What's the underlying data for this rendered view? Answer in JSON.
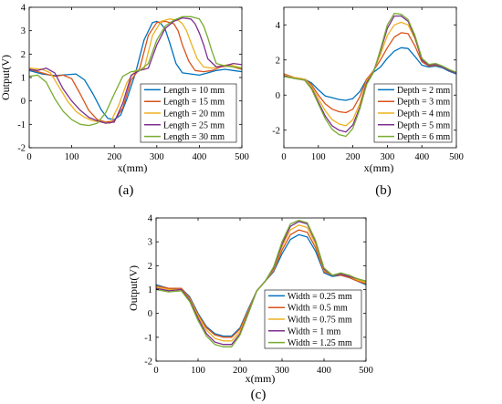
{
  "chart_data": [
    {
      "type": "line",
      "panel_label": "(a)",
      "xlabel": "x(mm)",
      "ylabel": "Output(V)",
      "xlim": [
        0,
        500
      ],
      "ylim": [
        -2,
        4
      ],
      "xticks": [
        0,
        100,
        200,
        300,
        400,
        500
      ],
      "yticks": [
        -2,
        -1,
        0,
        1,
        2,
        3,
        4
      ],
      "grid": false,
      "legend_position": "right-middle",
      "series": [
        {
          "name": "Length = 10 mm",
          "color": "#0072BD",
          "x": [
            0,
            30,
            60,
            90,
            110,
            130,
            150,
            170,
            185,
            200,
            215,
            230,
            250,
            270,
            290,
            300,
            310,
            320,
            330,
            345,
            360,
            380,
            400,
            420,
            440,
            460,
            480,
            500
          ],
          "y": [
            1.3,
            1.15,
            1.08,
            1.12,
            1.15,
            0.9,
            0.3,
            -0.4,
            -0.75,
            -0.8,
            -0.6,
            0.1,
            1.2,
            2.6,
            3.35,
            3.4,
            3.3,
            3.05,
            2.5,
            1.6,
            1.2,
            1.15,
            1.1,
            1.2,
            1.3,
            1.35,
            1.3,
            1.25
          ]
        },
        {
          "name": "Length = 15 mm",
          "color": "#D95319",
          "x": [
            0,
            30,
            60,
            80,
            100,
            120,
            140,
            160,
            180,
            200,
            220,
            240,
            260,
            280,
            300,
            320,
            340,
            350,
            360,
            375,
            390,
            410,
            430,
            450,
            470,
            490,
            500
          ],
          "y": [
            1.35,
            1.2,
            1.05,
            1.1,
            0.95,
            0.3,
            -0.4,
            -0.8,
            -0.9,
            -0.85,
            -0.3,
            0.9,
            1.4,
            2.8,
            3.35,
            3.4,
            3.3,
            3.0,
            2.4,
            1.7,
            1.3,
            1.25,
            1.3,
            1.45,
            1.5,
            1.4,
            1.35
          ]
        },
        {
          "name": "Length = 20 mm",
          "color": "#EDB120",
          "x": [
            0,
            30,
            50,
            70,
            90,
            110,
            130,
            150,
            170,
            190,
            210,
            230,
            250,
            270,
            290,
            310,
            330,
            350,
            360,
            370,
            380,
            395,
            410,
            430,
            450,
            470,
            490,
            500
          ],
          "y": [
            1.4,
            1.35,
            1.2,
            0.6,
            0.0,
            -0.45,
            -0.7,
            -0.85,
            -0.9,
            -0.95,
            -0.2,
            0.8,
            1.3,
            1.35,
            2.8,
            3.4,
            3.5,
            3.45,
            3.3,
            3.0,
            2.5,
            1.8,
            1.45,
            1.4,
            1.5,
            1.55,
            1.45,
            1.4
          ]
        },
        {
          "name": "Length = 25 mm",
          "color": "#7E2F8E",
          "x": [
            0,
            20,
            40,
            60,
            80,
            100,
            120,
            140,
            160,
            180,
            200,
            220,
            240,
            260,
            280,
            300,
            320,
            340,
            360,
            380,
            390,
            400,
            410,
            420,
            440,
            460,
            480,
            500
          ],
          "y": [
            1.35,
            1.3,
            1.4,
            1.2,
            0.5,
            0.0,
            -0.4,
            -0.7,
            -0.85,
            -0.95,
            -0.9,
            -0.1,
            1.1,
            1.3,
            1.4,
            2.4,
            3.1,
            3.4,
            3.55,
            3.5,
            3.3,
            2.9,
            2.4,
            1.8,
            1.45,
            1.5,
            1.6,
            1.55
          ]
        },
        {
          "name": "Length = 30 mm",
          "color": "#77AC30",
          "x": [
            0,
            20,
            40,
            60,
            80,
            100,
            120,
            140,
            160,
            180,
            200,
            220,
            240,
            260,
            280,
            300,
            320,
            340,
            360,
            380,
            400,
            410,
            420,
            430,
            440,
            460,
            480,
            500
          ],
          "y": [
            1.05,
            1.1,
            0.8,
            0.1,
            -0.45,
            -0.8,
            -1.0,
            -1.05,
            -0.95,
            -0.5,
            0.3,
            1.05,
            1.25,
            1.3,
            1.6,
            2.6,
            3.2,
            3.45,
            3.6,
            3.6,
            3.5,
            3.2,
            2.7,
            2.1,
            1.6,
            1.5,
            1.45,
            1.4
          ]
        }
      ]
    },
    {
      "type": "line",
      "panel_label": "(b)",
      "xlabel": "x(mm)",
      "ylabel": "",
      "xlim": [
        0,
        500
      ],
      "ylim": [
        -3,
        5
      ],
      "xticks": [
        0,
        100,
        200,
        300,
        400,
        500
      ],
      "yticks": [
        -2,
        0,
        2,
        4
      ],
      "grid": false,
      "legend_position": "right-middle",
      "series": [
        {
          "name": "Depth = 2 mm",
          "color": "#0072BD",
          "x": [
            0,
            30,
            60,
            80,
            100,
            120,
            140,
            160,
            180,
            200,
            220,
            240,
            260,
            280,
            300,
            320,
            340,
            360,
            380,
            400,
            420,
            440,
            460,
            480,
            500
          ],
          "y": [
            1.2,
            1.0,
            0.9,
            0.7,
            0.3,
            -0.05,
            -0.15,
            -0.25,
            -0.3,
            -0.2,
            0.2,
            0.9,
            1.3,
            1.6,
            2.1,
            2.5,
            2.7,
            2.65,
            2.2,
            1.7,
            1.6,
            1.65,
            1.55,
            1.35,
            1.2
          ]
        },
        {
          "name": "Depth = 3 mm",
          "color": "#D95319",
          "x": [
            0,
            30,
            60,
            80,
            100,
            120,
            140,
            160,
            180,
            200,
            220,
            240,
            260,
            280,
            300,
            320,
            340,
            360,
            380,
            400,
            420,
            440,
            460,
            480,
            500
          ],
          "y": [
            1.2,
            1.0,
            0.9,
            0.6,
            0.0,
            -0.5,
            -0.8,
            -0.95,
            -1.0,
            -0.8,
            -0.1,
            0.9,
            1.4,
            2.0,
            2.7,
            3.3,
            3.55,
            3.5,
            2.8,
            1.9,
            1.65,
            1.7,
            1.6,
            1.4,
            1.25
          ]
        },
        {
          "name": "Depth = 4 mm",
          "color": "#EDB120",
          "x": [
            0,
            30,
            60,
            80,
            100,
            120,
            140,
            160,
            180,
            200,
            220,
            240,
            260,
            280,
            300,
            320,
            340,
            360,
            380,
            400,
            420,
            440,
            460,
            480,
            500
          ],
          "y": [
            1.15,
            1.0,
            0.9,
            0.5,
            -0.2,
            -0.9,
            -1.4,
            -1.65,
            -1.75,
            -1.4,
            -0.5,
            0.8,
            1.4,
            2.3,
            3.4,
            4.0,
            4.15,
            4.0,
            3.2,
            2.0,
            1.7,
            1.75,
            1.6,
            1.4,
            1.25
          ]
        },
        {
          "name": "Depth = 5 mm",
          "color": "#7E2F8E",
          "x": [
            0,
            30,
            60,
            80,
            100,
            120,
            140,
            160,
            180,
            200,
            220,
            240,
            260,
            280,
            300,
            320,
            340,
            360,
            380,
            400,
            420,
            440,
            460,
            480,
            500
          ],
          "y": [
            1.1,
            0.95,
            0.85,
            0.4,
            -0.4,
            -1.2,
            -1.75,
            -2.0,
            -2.1,
            -1.7,
            -0.7,
            0.7,
            1.35,
            2.5,
            3.8,
            4.5,
            4.5,
            4.2,
            3.3,
            2.0,
            1.7,
            1.75,
            1.6,
            1.4,
            1.25
          ]
        },
        {
          "name": "Depth = 6 mm",
          "color": "#77AC30",
          "x": [
            0,
            30,
            60,
            80,
            100,
            120,
            140,
            160,
            180,
            200,
            220,
            240,
            260,
            280,
            300,
            320,
            340,
            360,
            380,
            400,
            420,
            440,
            460,
            480,
            500
          ],
          "y": [
            1.05,
            0.95,
            0.85,
            0.35,
            -0.5,
            -1.35,
            -1.95,
            -2.25,
            -2.35,
            -1.9,
            -0.8,
            0.6,
            1.3,
            2.6,
            4.0,
            4.65,
            4.6,
            4.3,
            3.4,
            2.1,
            1.75,
            1.8,
            1.65,
            1.45,
            1.3
          ]
        }
      ]
    },
    {
      "type": "line",
      "panel_label": "(c)",
      "xlabel": "x(mm)",
      "ylabel": "Output(V)",
      "xlim": [
        0,
        500
      ],
      "ylim": [
        -2,
        4
      ],
      "xticks": [
        0,
        100,
        200,
        300,
        400,
        500
      ],
      "yticks": [
        -2,
        -1,
        0,
        1,
        2,
        3,
        4
      ],
      "grid": false,
      "legend_position": "right-bottom",
      "series": [
        {
          "name": "Width = 0.25 mm",
          "color": "#0072BD",
          "x": [
            0,
            30,
            60,
            80,
            100,
            120,
            140,
            160,
            180,
            200,
            220,
            240,
            260,
            280,
            300,
            320,
            340,
            360,
            380,
            400,
            420,
            440,
            460,
            480,
            500
          ],
          "y": [
            1.2,
            1.05,
            1.05,
            0.7,
            0.0,
            -0.55,
            -0.85,
            -0.95,
            -0.95,
            -0.6,
            0.2,
            0.95,
            1.35,
            1.75,
            2.5,
            3.1,
            3.3,
            3.2,
            2.6,
            1.7,
            1.55,
            1.6,
            1.5,
            1.35,
            1.2
          ]
        },
        {
          "name": "Width = 0.5 mm",
          "color": "#D95319",
          "x": [
            0,
            30,
            60,
            80,
            100,
            120,
            140,
            160,
            180,
            200,
            220,
            240,
            260,
            280,
            300,
            320,
            340,
            360,
            380,
            400,
            420,
            440,
            460,
            480,
            500
          ],
          "y": [
            1.15,
            1.05,
            1.05,
            0.65,
            -0.05,
            -0.6,
            -0.9,
            -1.0,
            -1.0,
            -0.65,
            0.15,
            0.95,
            1.35,
            1.8,
            2.65,
            3.3,
            3.5,
            3.4,
            2.75,
            1.75,
            1.6,
            1.6,
            1.5,
            1.35,
            1.25
          ]
        },
        {
          "name": "Width = 0.75 mm",
          "color": "#EDB120",
          "x": [
            0,
            30,
            60,
            80,
            100,
            120,
            140,
            160,
            180,
            200,
            220,
            240,
            260,
            280,
            300,
            320,
            340,
            360,
            380,
            400,
            420,
            440,
            460,
            480,
            500
          ],
          "y": [
            1.1,
            1.0,
            1.0,
            0.6,
            -0.1,
            -0.7,
            -1.05,
            -1.15,
            -1.15,
            -0.75,
            0.1,
            0.95,
            1.35,
            1.85,
            2.8,
            3.5,
            3.7,
            3.6,
            2.9,
            1.8,
            1.6,
            1.65,
            1.55,
            1.4,
            1.3
          ]
        },
        {
          "name": "Width = 1 mm",
          "color": "#7E2F8E",
          "x": [
            0,
            30,
            60,
            80,
            100,
            120,
            140,
            160,
            180,
            200,
            220,
            240,
            260,
            280,
            300,
            320,
            340,
            360,
            380,
            400,
            420,
            440,
            460,
            480,
            500
          ],
          "y": [
            1.05,
            0.95,
            1.0,
            0.55,
            -0.2,
            -0.85,
            -1.2,
            -1.3,
            -1.3,
            -0.85,
            0.05,
            0.95,
            1.35,
            1.9,
            2.9,
            3.65,
            3.85,
            3.75,
            3.0,
            1.85,
            1.6,
            1.65,
            1.55,
            1.45,
            1.35
          ]
        },
        {
          "name": "Width = 1.25 mm",
          "color": "#77AC30",
          "x": [
            0,
            30,
            60,
            80,
            100,
            120,
            140,
            160,
            180,
            200,
            220,
            240,
            260,
            280,
            300,
            320,
            340,
            360,
            380,
            400,
            420,
            440,
            460,
            480,
            500
          ],
          "y": [
            1.0,
            0.9,
            0.95,
            0.5,
            -0.3,
            -0.95,
            -1.3,
            -1.4,
            -1.4,
            -0.9,
            0.0,
            0.95,
            1.35,
            1.95,
            3.0,
            3.75,
            3.9,
            3.8,
            3.05,
            1.9,
            1.6,
            1.7,
            1.6,
            1.45,
            1.35
          ]
        }
      ]
    }
  ]
}
